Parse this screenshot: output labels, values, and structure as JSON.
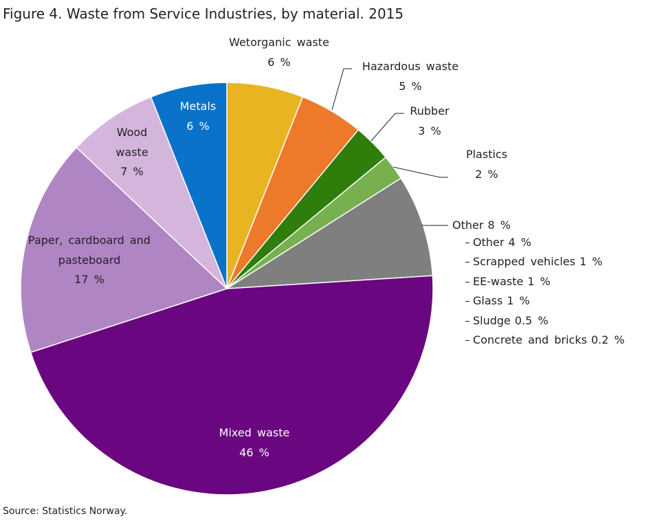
{
  "chart_data": {
    "type": "pie",
    "title": "Figure 4. Waste from Service Industries, by material. 2015",
    "source": "Source: Statistics Norway.",
    "categories": [
      "Wetorganic waste",
      "Hazardous waste",
      "Rubber",
      "Plastics",
      "Other",
      "Mixed waste",
      "Paper, cardboard and pasteboard",
      "Wood waste",
      "Metals"
    ],
    "values": [
      6,
      5,
      3,
      2,
      8,
      46,
      17,
      7,
      6
    ],
    "value_labels": [
      "6 %",
      "5 %",
      "3 %",
      "2 %",
      "8 %",
      "46 %",
      "17 %",
      "7 %",
      "6 %"
    ],
    "colors": [
      "#e8b422",
      "#ec7a2a",
      "#2f7d0a",
      "#78b050",
      "#7f7f7f",
      "#6a0680",
      "#b085c4",
      "#d4b5dc",
      "#0a72c8"
    ],
    "other_breakdown": [
      {
        "name": "Other",
        "value": 4,
        "value_label": "4 %"
      },
      {
        "name": "Scrapped vehicles",
        "value": 1,
        "value_label": "1 %"
      },
      {
        "name": "EE-waste",
        "value": 1,
        "value_label": "1 %"
      },
      {
        "name": "Glass",
        "value": 1,
        "value_label": "1 %"
      },
      {
        "name": "Sludge",
        "value": 0.5,
        "value_label": "0.5 %"
      },
      {
        "name": "Concrete and bricks",
        "value": 0.2,
        "value_label": "0.2 %"
      }
    ]
  }
}
